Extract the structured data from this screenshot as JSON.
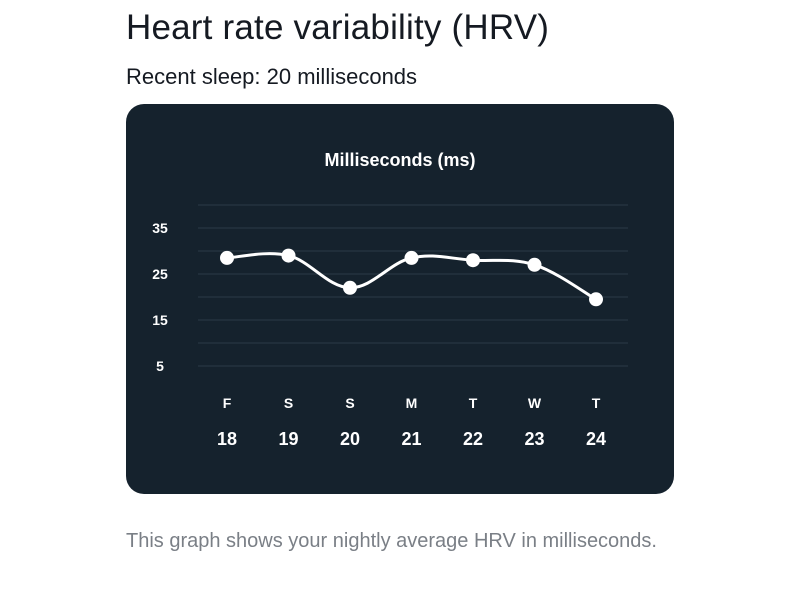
{
  "header": {
    "title": "Heart rate variability (HRV)",
    "subtitle": "Recent sleep: 20 milliseconds"
  },
  "caption": "This graph shows your nightly average HRV in milliseconds.",
  "colors": {
    "card_background": "#15222d",
    "line": "#ffffff",
    "text_primary": "#151a22",
    "text_secondary": "#7a7f86"
  },
  "chart_data": {
    "type": "line",
    "title": "Milliseconds (ms)",
    "xlabel": "",
    "ylabel": "",
    "categories": [
      {
        "day": "F",
        "date": "18"
      },
      {
        "day": "S",
        "date": "19"
      },
      {
        "day": "S",
        "date": "20"
      },
      {
        "day": "M",
        "date": "21"
      },
      {
        "day": "T",
        "date": "22"
      },
      {
        "day": "W",
        "date": "23"
      },
      {
        "day": "T",
        "date": "24"
      }
    ],
    "series": [
      {
        "values": [
          28.5,
          29,
          22,
          28.5,
          28,
          27,
          19.5
        ]
      }
    ],
    "yticks": [
      5,
      15,
      25,
      35
    ],
    "ylim": [
      0,
      40
    ],
    "grid": true,
    "legend": "none"
  }
}
